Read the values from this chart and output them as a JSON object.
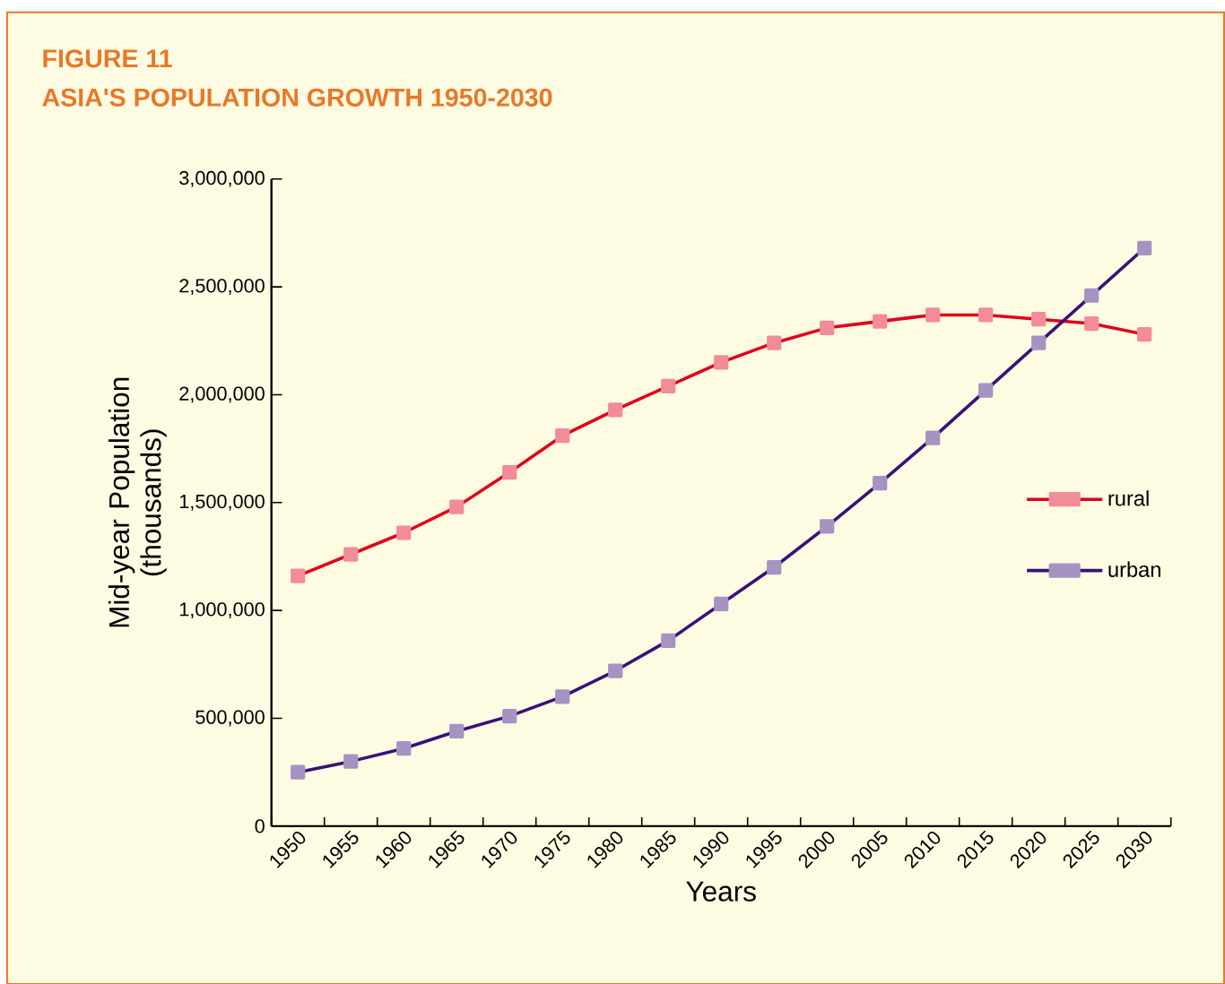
{
  "chart_data": {
    "type": "line",
    "title": "FIGURE 11",
    "subtitle": "ASIA'S POPULATION GROWTH 1950-2030",
    "xlabel": "Years",
    "ylabel": "Mid-year Population (thousands)",
    "categories": [
      "1950",
      "1955",
      "1960",
      "1965",
      "1970",
      "1975",
      "1980",
      "1985",
      "1990",
      "1995",
      "2000",
      "2005",
      "2010",
      "2015",
      "2020",
      "2025",
      "2030"
    ],
    "series": [
      {
        "name": "rural",
        "color": "#e2001a",
        "values": [
          1160000,
          1260000,
          1360000,
          1480000,
          1640000,
          1810000,
          1930000,
          2040000,
          2150000,
          2240000,
          2310000,
          2340000,
          2370000,
          2370000,
          2350000,
          2330000,
          2280000
        ]
      },
      {
        "name": "urban",
        "color": "#3a1078",
        "values": [
          250000,
          300000,
          360000,
          440000,
          510000,
          600000,
          720000,
          860000,
          1030000,
          1200000,
          1390000,
          1590000,
          1800000,
          2020000,
          2240000,
          2460000,
          2680000
        ]
      }
    ],
    "ylim": [
      0,
      3000000
    ],
    "yticks": [
      {
        "value": 0,
        "label": "0"
      },
      {
        "value": 500000,
        "label": "500,000"
      },
      {
        "value": 1000000,
        "label": "1,000,000"
      },
      {
        "value": 1500000,
        "label": "1,500,000"
      },
      {
        "value": 2000000,
        "label": "2,000,000"
      },
      {
        "value": 2500000,
        "label": "2,500,000"
      },
      {
        "value": 3000000,
        "label": "3,000,000"
      }
    ],
    "grid": false,
    "legend": "right",
    "marker": "square",
    "line_style": "solid"
  }
}
